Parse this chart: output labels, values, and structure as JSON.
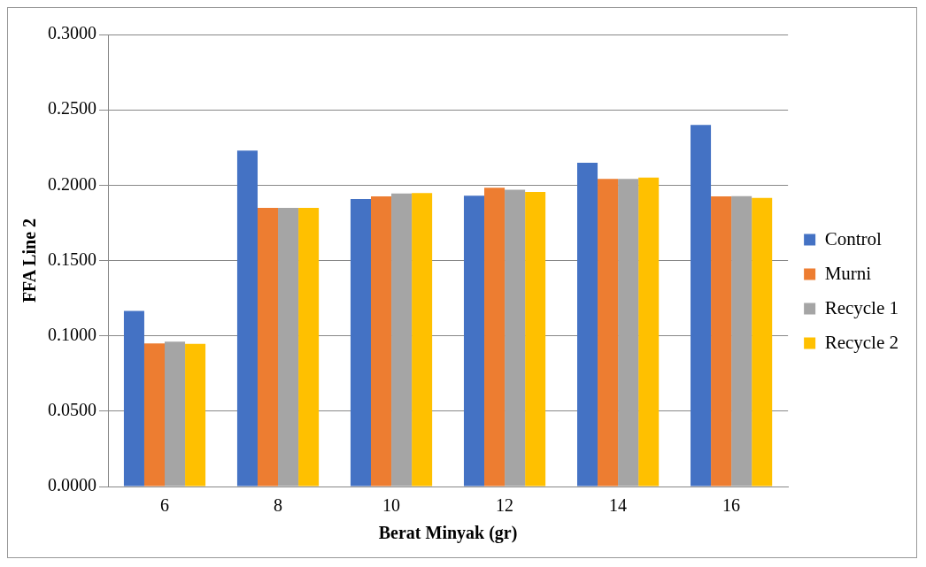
{
  "chart_data": {
    "type": "bar",
    "xlabel": "Berat Minyak (gr)",
    "ylabel": "FFA Line 2",
    "categories": [
      "6",
      "8",
      "10",
      "12",
      "14",
      "16"
    ],
    "series": [
      {
        "name": "Control",
        "color": "#4472c4",
        "values": [
          0.1165,
          0.2229,
          0.1908,
          0.193,
          0.2148,
          0.2399
        ]
      },
      {
        "name": "Murni",
        "color": "#ed7d31",
        "values": [
          0.095,
          0.1849,
          0.1925,
          0.1983,
          0.2042,
          0.1925
        ]
      },
      {
        "name": "Recycle 1",
        "color": "#a5a5a5",
        "values": [
          0.0961,
          0.1849,
          0.1944,
          0.1969,
          0.2042,
          0.1927
        ]
      },
      {
        "name": "Recycle 2",
        "color": "#ffc000",
        "values": [
          0.0947,
          0.1849,
          0.1947,
          0.1955,
          0.205,
          0.1916
        ]
      }
    ],
    "ylim": [
      0,
      0.3
    ],
    "yticks": [
      {
        "value": 0,
        "label": "0.0000"
      },
      {
        "value": 0.05,
        "label": "0.0500"
      },
      {
        "value": 0.1,
        "label": "0.1000"
      },
      {
        "value": 0.15,
        "label": "0.1500"
      },
      {
        "value": 0.2,
        "label": "0.2000"
      },
      {
        "value": 0.25,
        "label": "0.2500"
      },
      {
        "value": 0.3,
        "label": "0.3000"
      }
    ],
    "grid": "y",
    "legend": "right"
  }
}
